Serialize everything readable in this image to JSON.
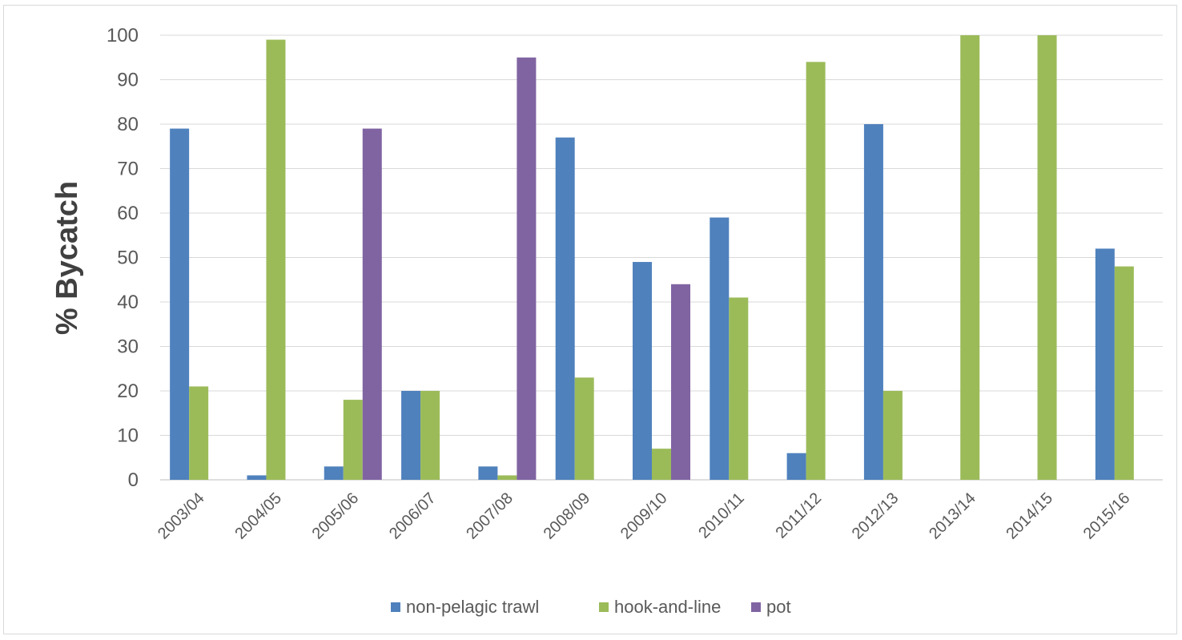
{
  "chart_data": {
    "type": "bar",
    "title": "",
    "xlabel": "",
    "ylabel": "% Bycatch",
    "ylim": [
      0,
      100
    ],
    "yticks": [
      0,
      10,
      20,
      30,
      40,
      50,
      60,
      70,
      80,
      90,
      100
    ],
    "grid": true,
    "legend_position": "bottom",
    "categories": [
      "2003/04",
      "2004/05",
      "2005/06",
      "2006/07",
      "2007/08",
      "2008/09",
      "2009/10",
      "2010/11",
      "2011/12",
      "2012/13",
      "2013/14",
      "2014/15",
      "2015/16"
    ],
    "series": [
      {
        "name": "non-pelagic trawl",
        "color": "#4f81bd",
        "values": [
          79,
          1,
          3,
          20,
          3,
          77,
          49,
          59,
          6,
          80,
          0,
          0,
          52
        ]
      },
      {
        "name": "hook-and-line",
        "color": "#9bbb59",
        "values": [
          21,
          99,
          18,
          20,
          1,
          23,
          7,
          41,
          94,
          20,
          100,
          100,
          48
        ]
      },
      {
        "name": "pot",
        "color": "#8064a2",
        "values": [
          0,
          0,
          79,
          0,
          95,
          0,
          44,
          0,
          0,
          0,
          0,
          0,
          0
        ]
      }
    ]
  }
}
